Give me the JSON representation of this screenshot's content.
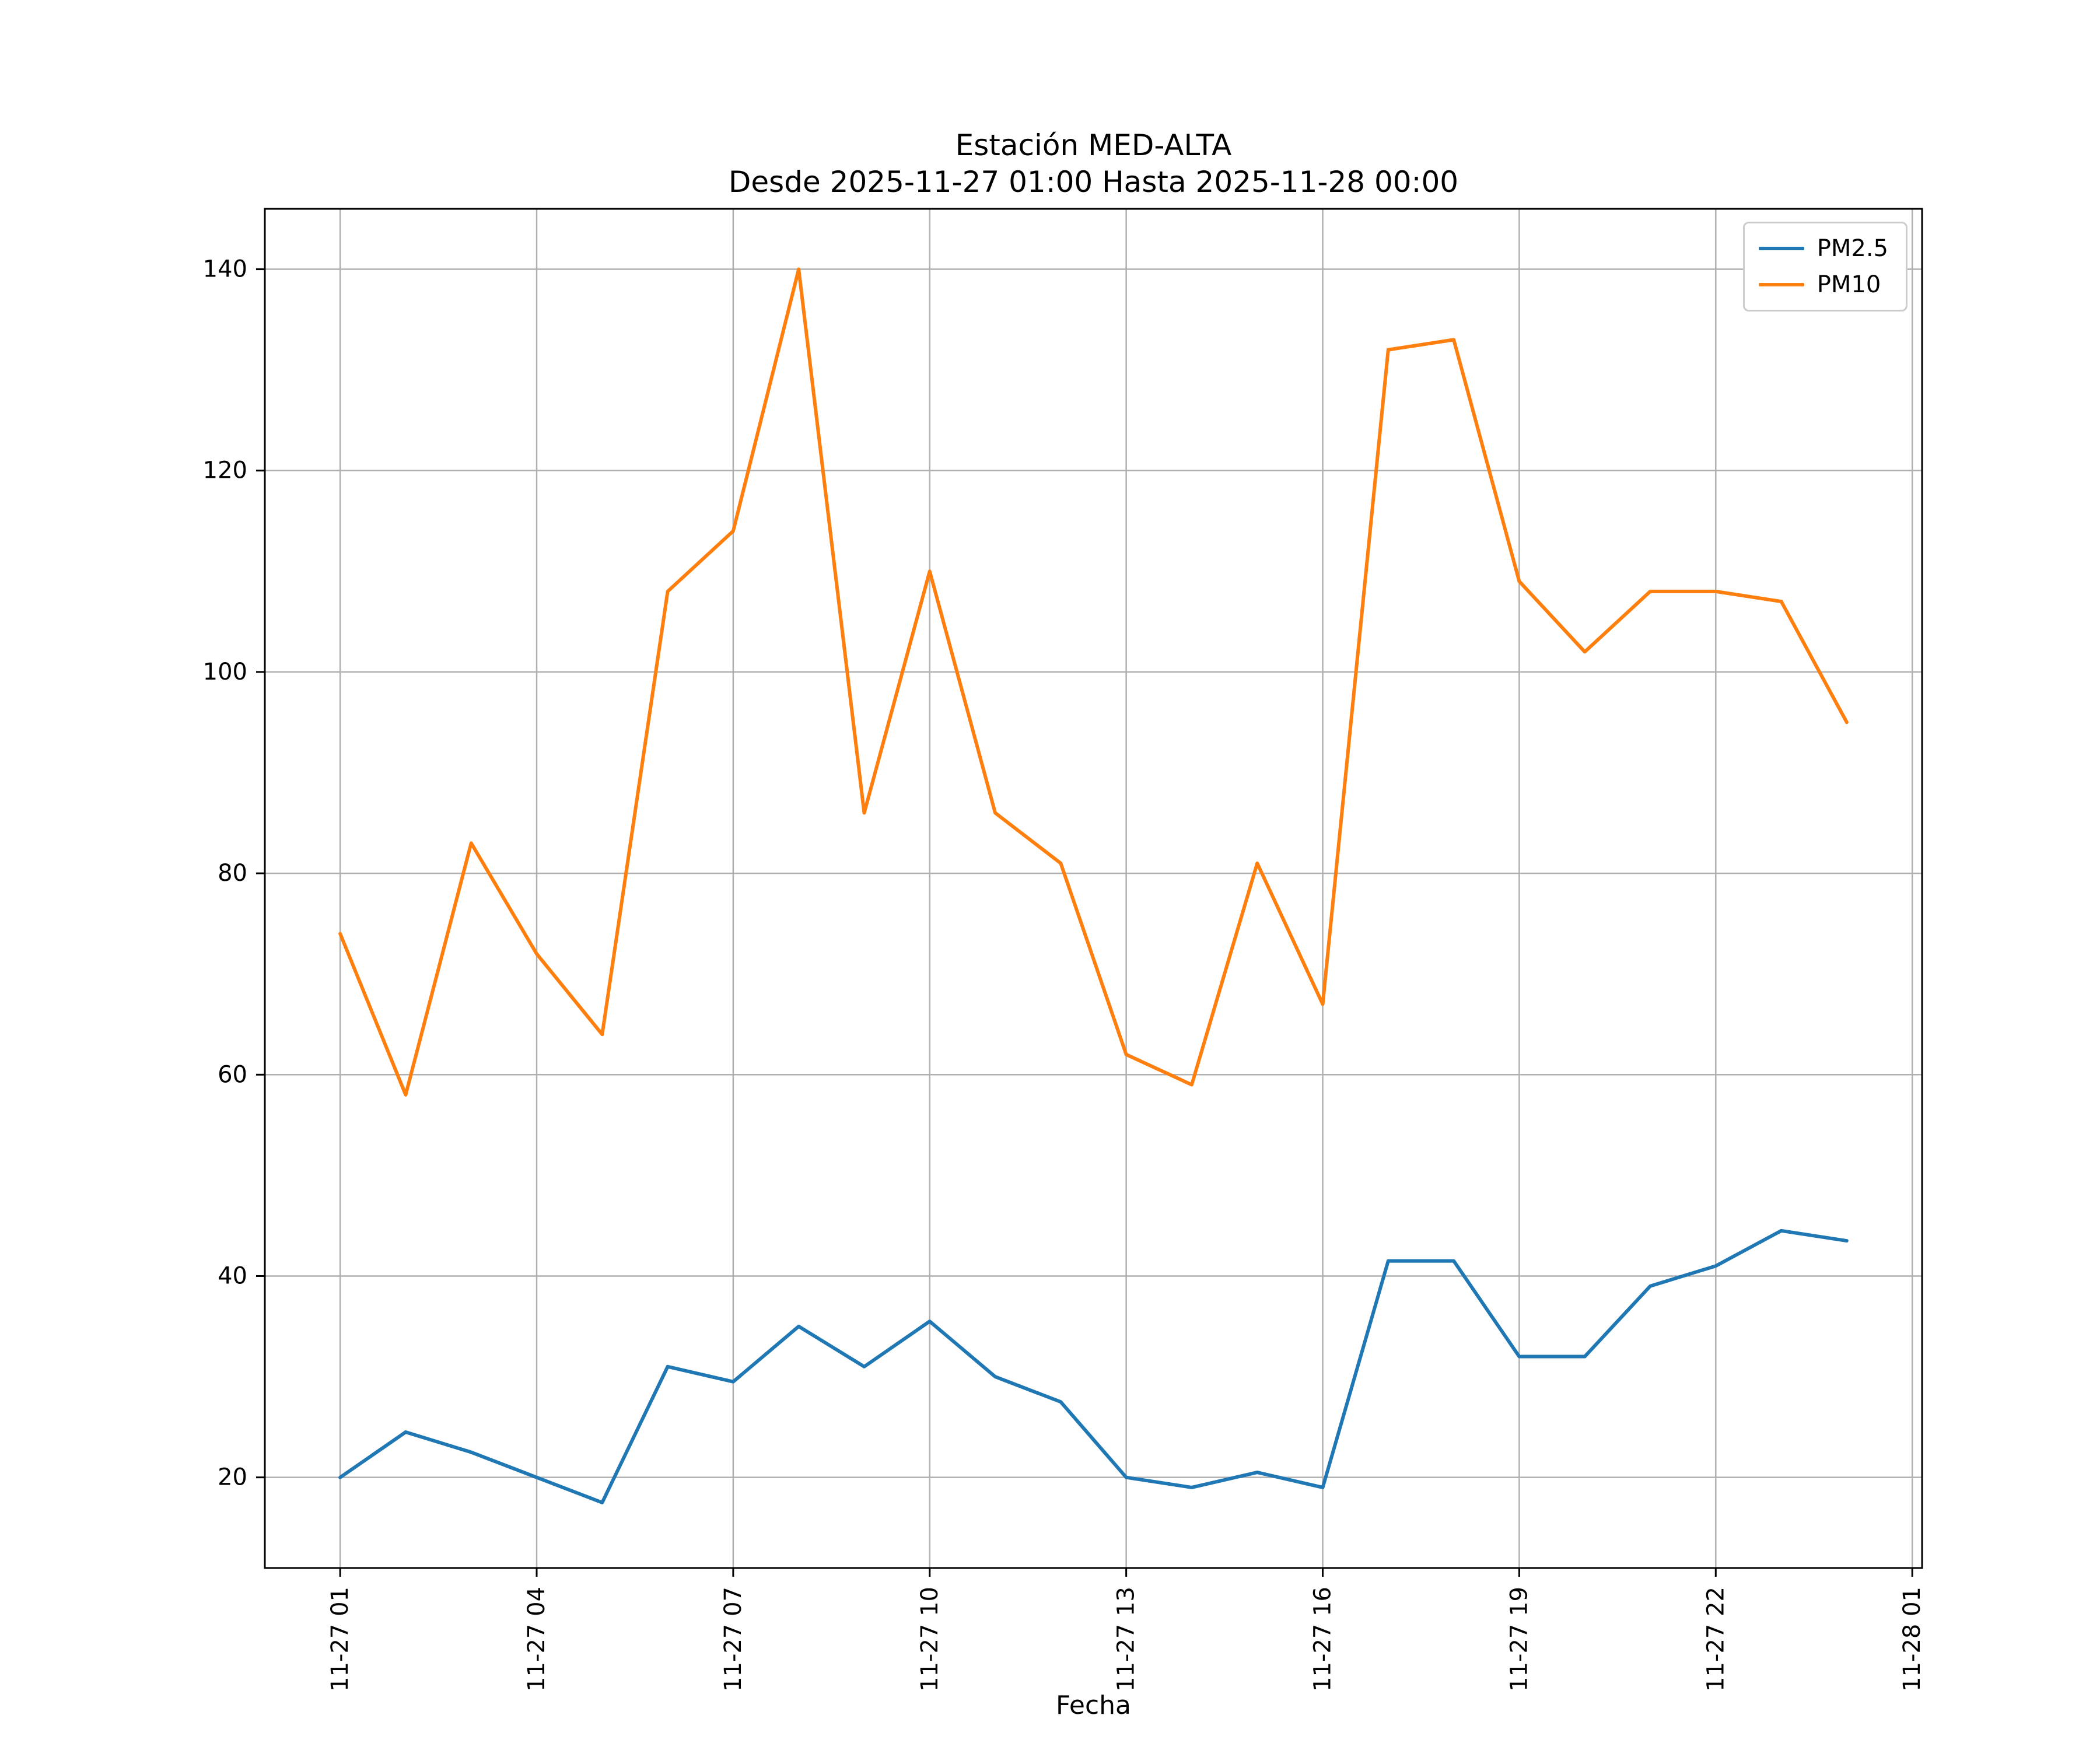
{
  "chart_data": {
    "type": "line",
    "title": "Estación MED-ALTA",
    "subtitle": "Desde 2025-11-27 01:00 Hasta 2025-11-28 00:00",
    "xlabel": "Fecha",
    "ylabel": "",
    "grid": true,
    "grid_color": "#b0b0b0",
    "legend_position": "upper right",
    "xlim": [
      -0.15,
      25.15
    ],
    "ylim": [
      11,
      146
    ],
    "x": [
      1,
      2,
      3,
      4,
      5,
      6,
      7,
      8,
      9,
      10,
      11,
      12,
      13,
      14,
      15,
      16,
      17,
      18,
      19,
      20,
      21,
      22,
      23,
      24
    ],
    "xticks": [
      {
        "value": 1,
        "label": "11-27 01"
      },
      {
        "value": 4,
        "label": "11-27 04"
      },
      {
        "value": 7,
        "label": "11-27 07"
      },
      {
        "value": 10,
        "label": "11-27 10"
      },
      {
        "value": 13,
        "label": "11-27 13"
      },
      {
        "value": 16,
        "label": "11-27 16"
      },
      {
        "value": 19,
        "label": "11-27 19"
      },
      {
        "value": 22,
        "label": "11-27 22"
      },
      {
        "value": 25,
        "label": "11-28 01"
      }
    ],
    "yticks": [
      20,
      40,
      60,
      80,
      100,
      120,
      140
    ],
    "series": [
      {
        "name": "PM2.5",
        "color": "#1f77b4",
        "values": [
          20,
          24.5,
          22.5,
          20,
          17.5,
          31,
          29.5,
          35,
          31,
          35.5,
          30,
          27.5,
          20,
          19,
          20.5,
          19,
          41.5,
          41.5,
          32,
          32,
          39,
          41,
          44.5,
          43.5
        ]
      },
      {
        "name": "PM10",
        "color": "#ff7f0e",
        "values": [
          74,
          58,
          83,
          72,
          64,
          108,
          114,
          140,
          86,
          110,
          86,
          81,
          62,
          59,
          81,
          67,
          132,
          133,
          109,
          102,
          108,
          108,
          107,
          95
        ]
      }
    ]
  }
}
